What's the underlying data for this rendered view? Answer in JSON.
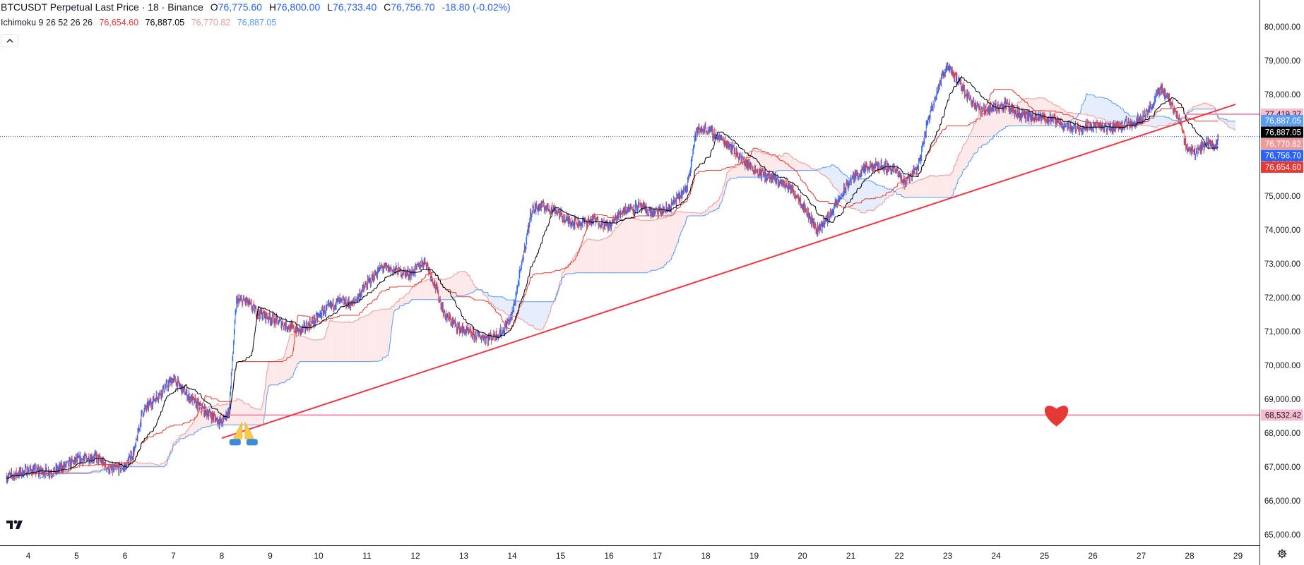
{
  "legend": {
    "symbol": "BTCUSDT Perpetual Last Price · 18 · Binance",
    "open_label": "O",
    "open": "76,775.60",
    "high_label": "H",
    "high": "76,800.00",
    "low_label": "L",
    "low": "76,733.40",
    "close_label": "C",
    "close": "76,756.70",
    "change": "-18.80 (-0.02%)"
  },
  "ichimoku": {
    "label": "Ichimoku 9 26 52 26 26",
    "v1": "76,654.60",
    "v2": "76,887.05",
    "v3": "76,770.82",
    "v4": "76,887.05",
    "colors": [
      "#e53935",
      "#000000",
      "#ef9a9a",
      "#5b9cf6"
    ]
  },
  "collapse_icon": "chevron-up-icon",
  "logo_text": "TV",
  "settings_icon": "gear-icon",
  "chart_data": {
    "type": "candlestick",
    "symbol": "BTCUSDT",
    "interval": "18",
    "x_ticks": [
      "4",
      "5",
      "6",
      "7",
      "8",
      "9",
      "10",
      "11",
      "12",
      "13",
      "14",
      "15",
      "16",
      "17",
      "18",
      "19",
      "20",
      "21",
      "22",
      "23",
      "24",
      "25",
      "26",
      "27",
      "28",
      "29"
    ],
    "y_ticks": [
      "80,000.00",
      "79,000.00",
      "78,000.00",
      "77,000.00",
      "76,000.00",
      "75,000.00",
      "74,000.00",
      "73,000.00",
      "72,000.00",
      "71,000.00",
      "70,000.00",
      "69,000.00",
      "68,000.00",
      "67,000.00",
      "66,000.00",
      "65,000.00"
    ],
    "ylim": [
      65000,
      80000
    ],
    "xlim": [
      3.55,
      29.0
    ],
    "price_path": [
      [
        3.55,
        66700
      ],
      [
        4.0,
        66900
      ],
      [
        4.5,
        66850
      ],
      [
        5.0,
        67200
      ],
      [
        5.4,
        67300
      ],
      [
        5.7,
        66900
      ],
      [
        6.0,
        67000
      ],
      [
        6.2,
        67500
      ],
      [
        6.35,
        68600
      ],
      [
        6.6,
        69000
      ],
      [
        6.8,
        69300
      ],
      [
        7.0,
        69600
      ],
      [
        7.3,
        69100
      ],
      [
        7.6,
        68700
      ],
      [
        7.8,
        68500
      ],
      [
        8.0,
        68300
      ],
      [
        8.15,
        68700
      ],
      [
        8.3,
        71900
      ],
      [
        8.5,
        71900
      ],
      [
        8.7,
        71600
      ],
      [
        9.0,
        71400
      ],
      [
        9.3,
        71200
      ],
      [
        9.6,
        71000
      ],
      [
        9.9,
        71300
      ],
      [
        10.1,
        71600
      ],
      [
        10.4,
        71900
      ],
      [
        10.7,
        71800
      ],
      [
        11.0,
        72400
      ],
      [
        11.3,
        72900
      ],
      [
        11.6,
        72800
      ],
      [
        11.9,
        72700
      ],
      [
        12.2,
        73100
      ],
      [
        12.4,
        72400
      ],
      [
        12.6,
        71500
      ],
      [
        12.9,
        71100
      ],
      [
        13.2,
        70900
      ],
      [
        13.5,
        70800
      ],
      [
        13.8,
        71000
      ],
      [
        14.0,
        71500
      ],
      [
        14.2,
        73000
      ],
      [
        14.4,
        74600
      ],
      [
        14.6,
        74700
      ],
      [
        14.9,
        74600
      ],
      [
        15.1,
        74300
      ],
      [
        15.4,
        74200
      ],
      [
        15.7,
        74300
      ],
      [
        16.0,
        74100
      ],
      [
        16.3,
        74600
      ],
      [
        16.6,
        74700
      ],
      [
        16.9,
        74500
      ],
      [
        17.2,
        74600
      ],
      [
        17.4,
        74900
      ],
      [
        17.6,
        75200
      ],
      [
        17.8,
        76900
      ],
      [
        18.0,
        77000
      ],
      [
        18.2,
        76800
      ],
      [
        18.5,
        76500
      ],
      [
        18.8,
        76000
      ],
      [
        19.1,
        75700
      ],
      [
        19.4,
        75500
      ],
      [
        19.7,
        75300
      ],
      [
        19.9,
        75000
      ],
      [
        20.1,
        74500
      ],
      [
        20.3,
        74000
      ],
      [
        20.5,
        74300
      ],
      [
        20.8,
        75000
      ],
      [
        21.0,
        75500
      ],
      [
        21.3,
        75800
      ],
      [
        21.6,
        75900
      ],
      [
        21.9,
        75800
      ],
      [
        22.1,
        75400
      ],
      [
        22.4,
        75900
      ],
      [
        22.6,
        77300
      ],
      [
        22.8,
        78200
      ],
      [
        23.0,
        78900
      ],
      [
        23.2,
        78400
      ],
      [
        23.4,
        78000
      ],
      [
        23.7,
        77500
      ],
      [
        23.9,
        77600
      ],
      [
        24.2,
        77700
      ],
      [
        24.5,
        77400
      ],
      [
        24.8,
        77300
      ],
      [
        25.1,
        77300
      ],
      [
        25.4,
        77100
      ],
      [
        25.7,
        77000
      ],
      [
        26.0,
        77100
      ],
      [
        26.3,
        77000
      ],
      [
        26.6,
        77100
      ],
      [
        26.9,
        77200
      ],
      [
        27.2,
        77600
      ],
      [
        27.4,
        78200
      ],
      [
        27.6,
        77800
      ],
      [
        27.8,
        77200
      ],
      [
        27.95,
        76400
      ],
      [
        28.15,
        76300
      ],
      [
        28.35,
        76600
      ],
      [
        28.55,
        76500
      ],
      [
        28.6,
        76757
      ]
    ],
    "current_price": 76756.7,
    "trendline": {
      "from": [
        8.0,
        67850
      ],
      "to": [
        28.95,
        77710
      ],
      "color": "#f23645"
    },
    "support_level": {
      "price": 68532.42,
      "color": "#f48fb1"
    },
    "resistance_level": {
      "price": 77419.37,
      "color": "#f48fb1"
    },
    "price_labels": [
      {
        "price": 77419.37,
        "text": "77,419.37",
        "bg": "#f8bbd0",
        "fg": "#131722"
      },
      {
        "price": 76887.05,
        "text": "76,887.05",
        "bg": "#5b9cf6",
        "fg": "#ffffff",
        "slot": -1
      },
      {
        "price": 76887.05,
        "text": "76,887.05",
        "bg": "#000000",
        "fg": "#ffffff",
        "slot": 0
      },
      {
        "price": 76770.82,
        "text": "76,770.82",
        "bg": "#ef9a9a",
        "fg": "#ffffff",
        "slot": 1
      },
      {
        "price": 76756.7,
        "text": "76,756.70",
        "bg": "#2962ff",
        "fg": "#ffffff",
        "slot": 2
      },
      {
        "price": 76654.6,
        "text": "76,654.60",
        "bg": "#e53935",
        "fg": "#ffffff",
        "slot": 3
      },
      {
        "price": 68532.42,
        "text": "68,532.42",
        "bg": "#f8bbd0",
        "fg": "#131722"
      }
    ],
    "markers": [
      {
        "type": "praying-hands-emoji",
        "x": 8.45,
        "price": 67950
      },
      {
        "type": "heart-emoji",
        "x": 25.25,
        "price": 68532.42,
        "color": "#e53935"
      }
    ],
    "candle_colors": {
      "up": "#2962ff",
      "down": "#e53935"
    },
    "ichimoku_colors": {
      "conversion": "#000000",
      "base": "#e53935",
      "span_a": "#ef9a9a",
      "span_b": "#5b9cf6",
      "cloud_up": "#fde7e7",
      "cloud_down": "#e3ebfc"
    }
  }
}
